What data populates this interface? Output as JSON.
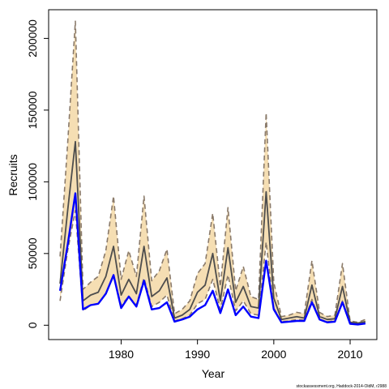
{
  "chart_data": {
    "type": "line",
    "xlabel": "Year",
    "ylabel": "Recruits",
    "credit": "stockassessment.org, Haddock-2014-OldM, r2988",
    "xlim": [
      1970.5,
      2013.5
    ],
    "ylim": [
      -10000,
      220000
    ],
    "x_ticks": [
      1980,
      1990,
      2000,
      2010
    ],
    "y_ticks": [
      0,
      50000,
      100000,
      150000,
      200000
    ],
    "x": [
      1972,
      1973,
      1974,
      1975,
      1976,
      1977,
      1978,
      1979,
      1980,
      1981,
      1982,
      1983,
      1984,
      1985,
      1986,
      1987,
      1988,
      1989,
      1990,
      1991,
      1992,
      1993,
      1994,
      1995,
      1996,
      1997,
      1998,
      1999,
      2000,
      2001,
      2002,
      2003,
      2004,
      2005,
      2006,
      2007,
      2008,
      2009,
      2010,
      2011,
      2012
    ],
    "series": [
      {
        "role": "upper",
        "style": "dashed",
        "color": "#8a7a6a",
        "values": [
          48000,
          127000,
          212000,
          25000,
          30000,
          34000,
          52000,
          90000,
          32000,
          52000,
          34000,
          90000,
          31000,
          38000,
          53000,
          8000,
          11000,
          17000,
          36000,
          43000,
          78000,
          27000,
          82000,
          24000,
          41000,
          20000,
          18000,
          148000,
          30000,
          6000,
          7000,
          9000,
          8000,
          45000,
          9000,
          6000,
          7000,
          43000,
          3000,
          2000,
          4000
        ]
      },
      {
        "role": "estimate",
        "style": "solid",
        "color": "#4d4d4d",
        "values": [
          29000,
          80000,
          128000,
          17000,
          21000,
          23000,
          34000,
          55000,
          21000,
          32000,
          22000,
          55000,
          20000,
          24000,
          33000,
          5000,
          7000,
          11000,
          23000,
          28000,
          50000,
          17000,
          54000,
          16000,
          27000,
          13000,
          12000,
          93000,
          19000,
          4000,
          5000,
          6000,
          5000,
          28000,
          6000,
          4000,
          4500,
          27000,
          2000,
          1500,
          2500
        ]
      },
      {
        "role": "lower",
        "style": "dashed",
        "color": "#8a7a6a",
        "values": [
          17000,
          52000,
          80000,
          10000,
          14000,
          15000,
          22000,
          34000,
          14000,
          20000,
          14000,
          33000,
          13000,
          16000,
          21000,
          3000,
          4500,
          7000,
          15000,
          18000,
          32000,
          11000,
          35000,
          10000,
          17000,
          8000,
          7000,
          58000,
          12000,
          2500,
          3000,
          4000,
          3500,
          18000,
          4000,
          2500,
          3000,
          17000,
          1200,
          800,
          1500
        ]
      },
      {
        "role": "comparison",
        "style": "solid",
        "color": "#0000ff",
        "values": [
          24000,
          56000,
          92000,
          11000,
          14000,
          15000,
          22000,
          35000,
          12000,
          20000,
          13000,
          31000,
          11000,
          12000,
          16000,
          2500,
          4000,
          6000,
          11000,
          14000,
          24000,
          8500,
          25000,
          7000,
          13000,
          6000,
          5000,
          45000,
          11000,
          2000,
          2500,
          3000,
          3000,
          16000,
          4000,
          2000,
          2500,
          16000,
          1000,
          500,
          1200
        ]
      }
    ]
  }
}
